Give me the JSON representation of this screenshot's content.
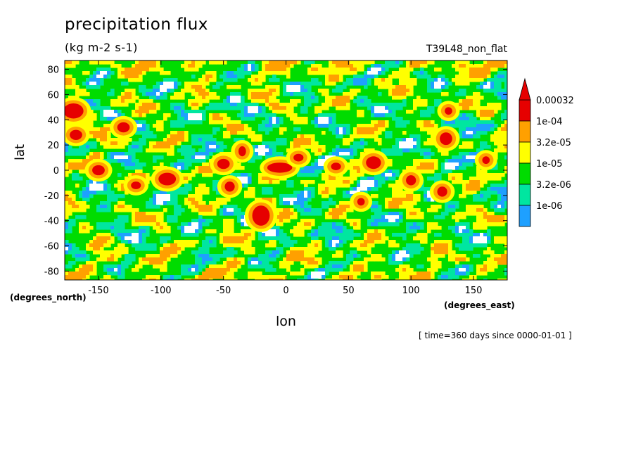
{
  "chart_data": {
    "type": "heatmap",
    "title": "precipitation flux",
    "units": "(kg m-2 s-1)",
    "run_label": "T39L48_non_flat",
    "xlabel": "lon",
    "ylabel": "lat",
    "x_units_label": "(degrees_east)",
    "y_units_label": "(degrees_north)",
    "timestamp": "[ time=360 days since 0000-01-01 ]",
    "xlim": [
      -177,
      177
    ],
    "ylim": [
      -87,
      87
    ],
    "x_ticks": [
      -150,
      -100,
      -50,
      0,
      50,
      100,
      150
    ],
    "y_ticks": [
      80,
      60,
      40,
      20,
      0,
      -20,
      -40,
      -60,
      -80
    ],
    "x_tick_labels": [
      "-150",
      "-100",
      "-50",
      "0",
      "50",
      "100",
      "150"
    ],
    "y_tick_labels": [
      "80",
      "60",
      "40",
      "20",
      "0",
      "-20",
      "-40",
      "-60",
      "-80"
    ],
    "colorbar": {
      "levels": [
        "1e-06",
        "3.2e-06",
        "1e-05",
        "3.2e-05",
        "1e-04",
        "0.00032"
      ],
      "colors": [
        "#ffffff",
        "#1ea0ff",
        "#00e6a0",
        "#00dc00",
        "#ffff00",
        "#ffa000",
        "#e60000"
      ]
    },
    "regions": [
      {
        "lon": -170,
        "lat": 47,
        "rx": 8,
        "ry": 6,
        "level": 6
      },
      {
        "lon": -168,
        "lat": 28,
        "rx": 5,
        "ry": 4,
        "level": 6
      },
      {
        "lon": -130,
        "lat": 34,
        "rx": 5,
        "ry": 4,
        "level": 6
      },
      {
        "lon": -150,
        "lat": 0,
        "rx": 5,
        "ry": 4,
        "level": 6
      },
      {
        "lon": -120,
        "lat": -12,
        "rx": 4,
        "ry": 3,
        "level": 6
      },
      {
        "lon": -95,
        "lat": -7,
        "rx": 7,
        "ry": 5,
        "level": 6
      },
      {
        "lon": -50,
        "lat": 5,
        "rx": 5,
        "ry": 4,
        "level": 6
      },
      {
        "lon": -45,
        "lat": -13,
        "rx": 4,
        "ry": 4,
        "level": 6
      },
      {
        "lon": -35,
        "lat": 15,
        "rx": 3,
        "ry": 4,
        "level": 6
      },
      {
        "lon": -20,
        "lat": -36,
        "rx": 7,
        "ry": 8,
        "level": 6
      },
      {
        "lon": -5,
        "lat": 2,
        "rx": 10,
        "ry": 4,
        "level": 6
      },
      {
        "lon": 10,
        "lat": 10,
        "rx": 4,
        "ry": 3,
        "level": 6
      },
      {
        "lon": 40,
        "lat": 3,
        "rx": 4,
        "ry": 3,
        "level": 6
      },
      {
        "lon": 70,
        "lat": 6,
        "rx": 6,
        "ry": 5,
        "level": 6
      },
      {
        "lon": 60,
        "lat": -25,
        "rx": 3,
        "ry": 3,
        "level": 6
      },
      {
        "lon": 100,
        "lat": -8,
        "rx": 4,
        "ry": 4,
        "level": 6
      },
      {
        "lon": 128,
        "lat": 25,
        "rx": 5,
        "ry": 5,
        "level": 6
      },
      {
        "lon": 130,
        "lat": 47,
        "rx": 3,
        "ry": 3,
        "level": 6
      },
      {
        "lon": 125,
        "lat": -17,
        "rx": 4,
        "ry": 4,
        "level": 6
      },
      {
        "lon": 160,
        "lat": 8,
        "rx": 3,
        "ry": 3,
        "level": 6
      }
    ]
  }
}
